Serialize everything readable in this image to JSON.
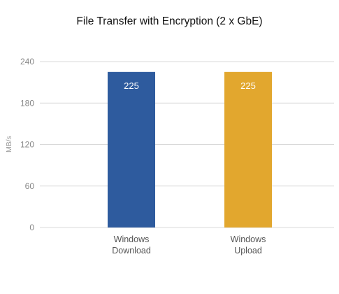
{
  "chart_data": {
    "type": "bar",
    "title": "File Transfer with Encryption (2 x GbE)",
    "xlabel": "",
    "ylabel": "MB/s",
    "categories": [
      [
        "Windows",
        "Download"
      ],
      [
        "Windows",
        "Upload"
      ]
    ],
    "values": [
      225,
      225
    ],
    "data_labels": [
      "225",
      "225"
    ],
    "colors": [
      "#2e5b9e",
      "#e2a72e"
    ],
    "ylim": [
      0,
      240
    ],
    "yticks": [
      0,
      60,
      120,
      180,
      240
    ],
    "grid": true,
    "legend": "none"
  }
}
